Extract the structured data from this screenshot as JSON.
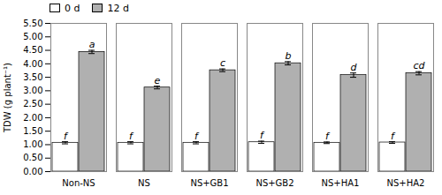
{
  "chart_data": {
    "type": "bar",
    "categories": [
      "Non-NS",
      "NS",
      "NS+GB1",
      "NS+GB2",
      "NS+HA1",
      "NS+HA2"
    ],
    "series": [
      {
        "name": "0 d",
        "color": "#ffffff",
        "values": [
          1.07,
          1.07,
          1.07,
          1.09,
          1.07,
          1.08
        ],
        "errors": [
          0.04,
          0.04,
          0.04,
          0.04,
          0.03,
          0.03
        ],
        "annotations": [
          "f",
          "f",
          "f",
          "f",
          "f",
          "f"
        ]
      },
      {
        "name": "12 d",
        "color": "#b0b0b0",
        "values": [
          4.44,
          3.12,
          3.76,
          4.02,
          3.58,
          3.65
        ],
        "errors": [
          0.06,
          0.05,
          0.05,
          0.06,
          0.08,
          0.06
        ],
        "annotations": [
          "a",
          "e",
          "c",
          "b",
          "d",
          "cd"
        ]
      }
    ],
    "ylabel": "TDW (g plant⁻¹)",
    "ylim": [
      0.0,
      5.5
    ],
    "yticks": [
      {
        "value": 0,
        "label": "0.00"
      },
      {
        "value": 0.5,
        "label": "0.50"
      },
      {
        "value": 1,
        "label": "1.00"
      },
      {
        "value": 1.5,
        "label": "1.50"
      },
      {
        "value": 2,
        "label": "2.00"
      },
      {
        "value": 2.5,
        "label": "2.50"
      },
      {
        "value": 3,
        "label": "3.00"
      },
      {
        "value": 3.5,
        "label": "3.50"
      },
      {
        "value": 4,
        "label": "4.00"
      },
      {
        "value": 4.5,
        "label": "4.50"
      },
      {
        "value": 5,
        "label": "5.00"
      },
      {
        "value": 5.5,
        "label": "5.50"
      }
    ],
    "legend": "upper left",
    "grid": false
  }
}
